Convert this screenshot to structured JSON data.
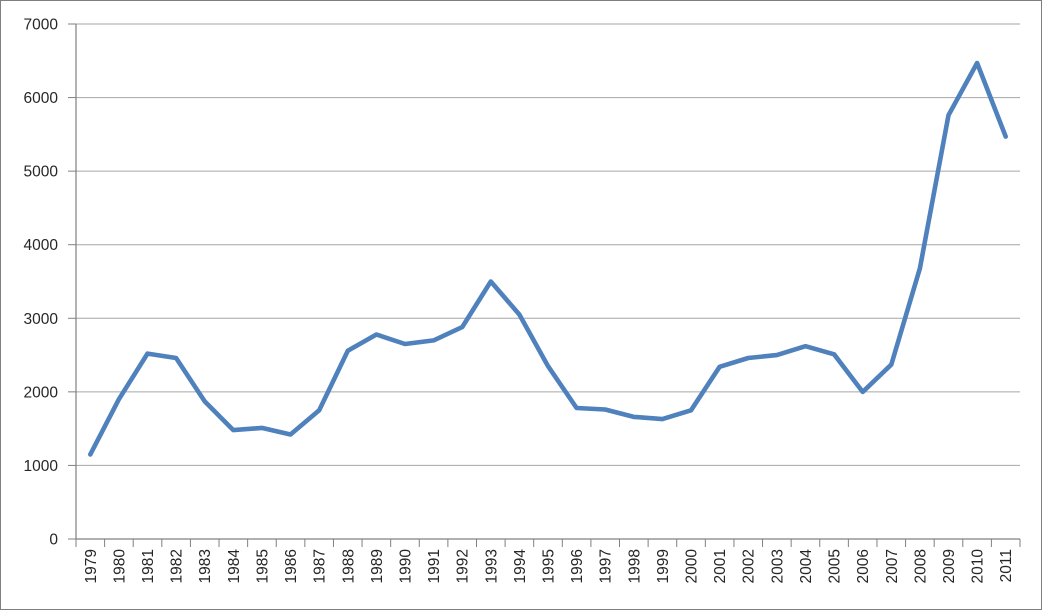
{
  "chart_data": {
    "type": "line",
    "title": "",
    "xlabel": "",
    "ylabel": "",
    "categories": [
      "1979",
      "1980",
      "1981",
      "1982",
      "1983",
      "1984",
      "1985",
      "1986",
      "1987",
      "1988",
      "1989",
      "1990",
      "1991",
      "1992",
      "1993",
      "1994",
      "1995",
      "1996",
      "1997",
      "1998",
      "1999",
      "2000",
      "2001",
      "2002",
      "2003",
      "2004",
      "2005",
      "2006",
      "2007",
      "2008",
      "2009",
      "2010",
      "2011"
    ],
    "values": [
      1150,
      1900,
      2520,
      2460,
      1870,
      1480,
      1510,
      1420,
      1750,
      2560,
      2780,
      2650,
      2700,
      2880,
      3500,
      3050,
      2350,
      1780,
      1760,
      1660,
      1630,
      1750,
      2340,
      2460,
      2500,
      2620,
      2510,
      2000,
      2370,
      3680,
      5760,
      6470,
      5470
    ],
    "ylim": [
      0,
      7000
    ],
    "y_ticks": [
      0,
      1000,
      2000,
      3000,
      4000,
      5000,
      6000,
      7000
    ],
    "y_tick_labels": [
      "0",
      "1000",
      "2000",
      "3000",
      "4000",
      "5000",
      "6000",
      "7000"
    ],
    "grid": true,
    "legend": false,
    "x_label_rotation_degrees": -90,
    "colors": {
      "line": "#4f81bd",
      "gridline": "#a6a6a6",
      "axis": "#808080",
      "tick_label": "#262626",
      "background": "#ffffff",
      "border": "#7f7f7f"
    }
  }
}
